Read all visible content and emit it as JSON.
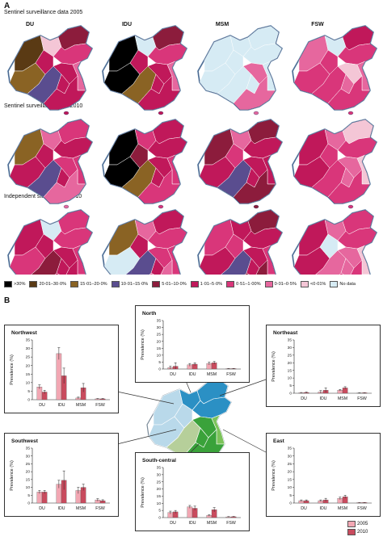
{
  "panel_a": {
    "letter": "A",
    "rows": [
      {
        "title": "Sentinel surveillance data 2005",
        "maps": [
          "DU",
          "IDU",
          "MSM",
          "FSW"
        ]
      },
      {
        "title": "Sentinel surveillance data 2010",
        "maps": [
          "",
          "",
          "",
          ""
        ]
      },
      {
        "title": "Independent studies data 2010",
        "maps": [
          "",
          "",
          "",
          ""
        ]
      }
    ],
    "legend": [
      {
        "label": ">30%",
        "color": "#000000"
      },
      {
        "label": "20·01–30·0%",
        "color": "#5a3a14"
      },
      {
        "label": "15·01–20·0%",
        "color": "#8a6324"
      },
      {
        "label": "10·01–15·0%",
        "color": "#5a4d8f"
      },
      {
        "label": "5·01–10·0%",
        "color": "#8c1c3c"
      },
      {
        "label": "1·01–5·0%",
        "color": "#c0185a"
      },
      {
        "label": "0·51–1·00%",
        "color": "#d9367a"
      },
      {
        "label": "0·01–0·5%",
        "color": "#e6679e"
      },
      {
        "label": "<0·01%",
        "color": "#f4c6d6"
      },
      {
        "label": "No data",
        "color": "#d6ebf4"
      }
    ]
  },
  "panel_b": {
    "letter": "B",
    "legend": [
      {
        "label": "2005",
        "color": "#f2a7b3"
      },
      {
        "label": "2010",
        "color": "#c94b5e"
      }
    ]
  },
  "chart_data": [
    {
      "type": "bar",
      "title": "Northwest",
      "categories": [
        "DU",
        "IDU",
        "MSM",
        "FSW"
      ],
      "ylabel": "Prevalence (%)",
      "ylim": [
        0,
        35
      ],
      "yticks": [
        0,
        5,
        10,
        15,
        20,
        25,
        30,
        35
      ],
      "series": [
        {
          "name": "2005",
          "values": [
            7.5,
            27,
            1,
            0.5
          ],
          "errors": [
            1.2,
            3.5,
            0.5,
            0.2
          ]
        },
        {
          "name": "2010",
          "values": [
            4.5,
            14,
            7,
            0.5
          ],
          "errors": [
            1,
            4.5,
            2.5,
            0.2
          ]
        }
      ]
    },
    {
      "type": "bar",
      "title": "North",
      "categories": [
        "DU",
        "IDU",
        "MSM",
        "FSW"
      ],
      "ylabel": "Prevalence (%)",
      "ylim": [
        0,
        35
      ],
      "yticks": [
        0,
        5,
        10,
        15,
        20,
        25,
        30,
        35
      ],
      "series": [
        {
          "name": "2005",
          "values": [
            1,
            3,
            4,
            0.3
          ],
          "errors": [
            1,
            1,
            1,
            0.1
          ]
        },
        {
          "name": "2010",
          "values": [
            2,
            3.5,
            4.5,
            0.3
          ],
          "errors": [
            2.5,
            1,
            1,
            0.1
          ]
        }
      ]
    },
    {
      "type": "bar",
      "title": "Northeast",
      "categories": [
        "DU",
        "IDU",
        "MSM",
        "FSW"
      ],
      "ylabel": "Prevalence (%)",
      "ylim": [
        0,
        35
      ],
      "yticks": [
        0,
        5,
        10,
        15,
        20,
        25,
        30,
        35
      ],
      "series": [
        {
          "name": "2005",
          "values": [
            0.3,
            0.8,
            2,
            0.2
          ],
          "errors": [
            0.2,
            1,
            0.5,
            0.1
          ]
        },
        {
          "name": "2010",
          "values": [
            0.5,
            2,
            3.5,
            0.3
          ],
          "errors": [
            0.3,
            1.5,
            0.8,
            0.1
          ]
        }
      ]
    },
    {
      "type": "bar",
      "title": "Southwest",
      "categories": [
        "DU",
        "IDU",
        "MSM",
        "FSW"
      ],
      "ylabel": "Prevalence (%)",
      "ylim": [
        0,
        35
      ],
      "yticks": [
        0,
        5,
        10,
        15,
        20,
        25,
        30,
        35
      ],
      "series": [
        {
          "name": "2005",
          "values": [
            7,
            12,
            8,
            2
          ],
          "errors": [
            1,
            2.5,
            2,
            0.8
          ]
        },
        {
          "name": "2010",
          "values": [
            7,
            14.5,
            10,
            1.5
          ],
          "errors": [
            1,
            6,
            2,
            0.6
          ]
        }
      ]
    },
    {
      "type": "bar",
      "title": "South-central",
      "categories": [
        "DU",
        "IDU",
        "MSM",
        "FSW"
      ],
      "ylabel": "Prevalence (%)",
      "ylim": [
        0,
        35
      ],
      "yticks": [
        0,
        5,
        10,
        15,
        20,
        25,
        30,
        35
      ],
      "series": [
        {
          "name": "2005",
          "values": [
            3.5,
            7.5,
            1.5,
            0.5
          ],
          "errors": [
            1,
            1,
            0.5,
            0.2
          ]
        },
        {
          "name": "2010",
          "values": [
            4,
            6.5,
            5.5,
            0.6
          ],
          "errors": [
            1,
            1.5,
            1.5,
            0.2
          ]
        }
      ]
    },
    {
      "type": "bar",
      "title": "East",
      "categories": [
        "DU",
        "IDU",
        "MSM",
        "FSW"
      ],
      "ylabel": "Prevalence (%)",
      "ylim": [
        0,
        35
      ],
      "yticks": [
        0,
        5,
        10,
        15,
        20,
        25,
        30,
        35
      ],
      "series": [
        {
          "name": "2005",
          "values": [
            1.5,
            1.5,
            3,
            0.3
          ],
          "errors": [
            0.5,
            0.5,
            0.8,
            0.1
          ]
        },
        {
          "name": "2010",
          "values": [
            1.5,
            2,
            4,
            0.3
          ],
          "errors": [
            0.5,
            1,
            1,
            0.1
          ]
        }
      ]
    }
  ]
}
